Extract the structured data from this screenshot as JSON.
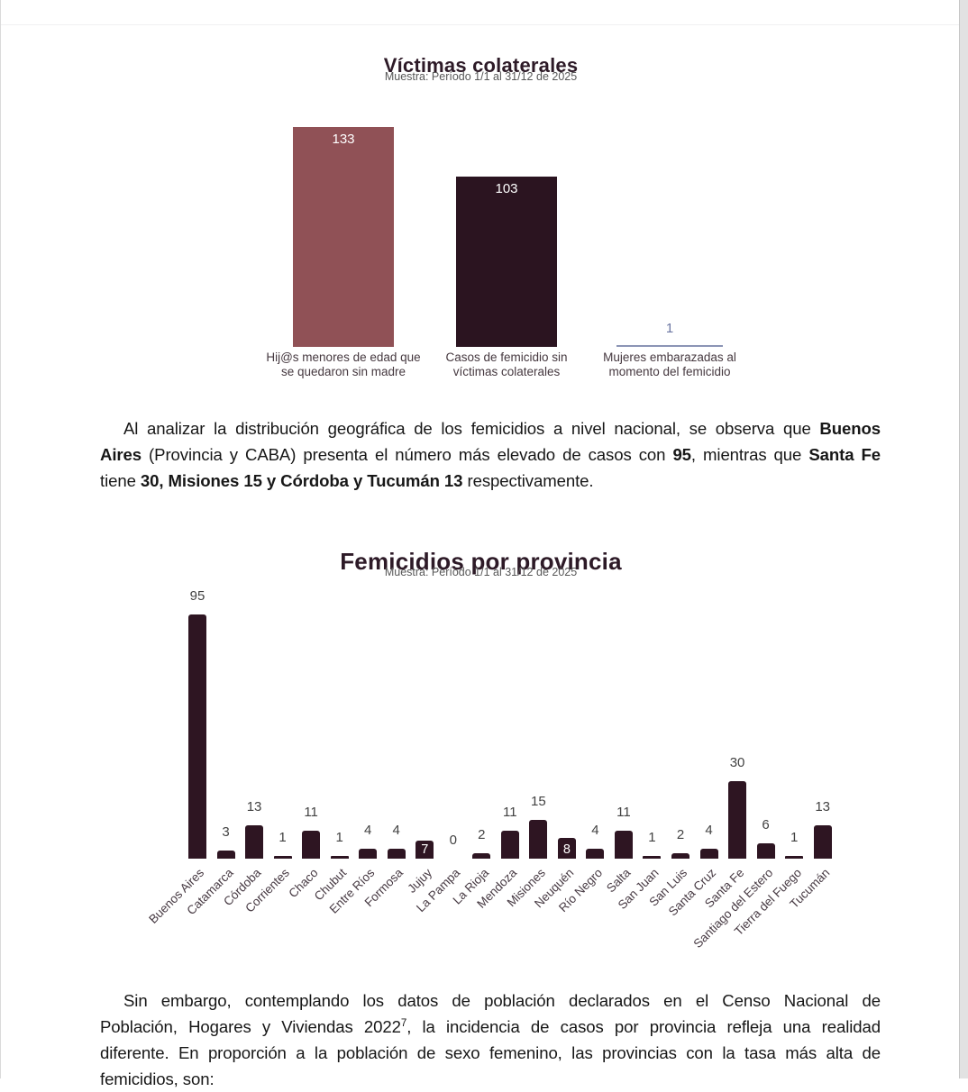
{
  "chart_data": [
    {
      "type": "bar",
      "title": "Víctimas colaterales",
      "subtitle": "Muestra: Período 1/1 al 31/12 de 2025",
      "categories": [
        [
          "Hij@s menores de edad que",
          "se quedaron sin madre"
        ],
        [
          "Casos de femicidio sin",
          "víctimas colaterales"
        ],
        [
          "Mujeres embarazadas al",
          "momento del femicidio"
        ]
      ],
      "values": [
        133,
        103,
        1
      ],
      "bar_colors": [
        "#905156",
        "#2b1420",
        "#8b94b5"
      ],
      "value_label_placement": [
        "inside",
        "inside",
        "above"
      ],
      "above_value_color": "#6b76a2",
      "category_color": "#45383f",
      "ylim": [
        0,
        140
      ],
      "grid": false,
      "legend": "none"
    },
    {
      "type": "bar",
      "title": "Femicidios por provincia",
      "subtitle": "Muestra: Período 1/1 al 31/12 de 2025",
      "categories": [
        "Buenos Aires",
        "Catamarca",
        "Córdoba",
        "Corrientes",
        "Chaco",
        "Chubut",
        "Entre Ríos",
        "Formosa",
        "Jujuy",
        "La Pampa",
        "La Rioja",
        "Mendoza",
        "Misiones",
        "Neuquén",
        "Río Negro",
        "Salta",
        "San Juan",
        "San Luis",
        "Santa Cruz",
        "Santa Fe",
        "Santiago del Estero",
        "Tierra del Fuego",
        "Tucumán"
      ],
      "values": [
        95,
        3,
        13,
        1,
        11,
        1,
        4,
        4,
        7,
        0,
        2,
        11,
        15,
        8,
        4,
        11,
        1,
        2,
        4,
        30,
        6,
        1,
        13
      ],
      "bar_color": "#2e1522",
      "value_label_color": "#424242",
      "inside_label_indices": [
        8,
        13
      ],
      "xtick_rotation": -45,
      "ylim": [
        0,
        100
      ],
      "grid": false,
      "legend": "none"
    }
  ],
  "paragraphs": [
    {
      "id": "paragraph-distribucion",
      "lines": [
        {
          "indent": true,
          "last": false,
          "segments": [
            {
              "text": "Al analizar la distribución geográfica de los femicidios a nivel nacional, se observa que "
            },
            {
              "text": "Buenos",
              "bold": true
            }
          ]
        },
        {
          "indent": false,
          "last": false,
          "segments": [
            {
              "text": "Aires",
              "bold": true
            },
            {
              "text": " (Provincia y CABA) presenta el número más elevado de casos con "
            },
            {
              "text": "95",
              "bold": true
            },
            {
              "text": ", mientras que "
            },
            {
              "text": "Santa Fe",
              "bold": true
            }
          ]
        },
        {
          "indent": false,
          "last": true,
          "segments": [
            {
              "text": "tiene "
            },
            {
              "text": "30, Misiones 15 y Córdoba y Tucumán 13",
              "bold": true
            },
            {
              "text": " respectivamente."
            }
          ]
        }
      ]
    },
    {
      "id": "paragraph-censo",
      "lines": [
        {
          "indent": true,
          "last": false,
          "segments": [
            {
              "text": "Sin embargo, contemplando los datos de población declarados en el Censo Nacional de"
            }
          ]
        },
        {
          "indent": false,
          "last": false,
          "segments": [
            {
              "text": "Población, Hogares y Viviendas 2022"
            },
            {
              "text": "7",
              "sup": true
            },
            {
              "text": ", la incidencia de casos por provincia refleja una realidad"
            }
          ]
        },
        {
          "indent": false,
          "last": false,
          "segments": [
            {
              "text": "diferente. En proporción a la población de sexo femenino, las provincias con la tasa más alta de"
            }
          ]
        },
        {
          "indent": false,
          "last": true,
          "segments": [
            {
              "text": "femicidios, son:"
            }
          ]
        }
      ]
    }
  ]
}
